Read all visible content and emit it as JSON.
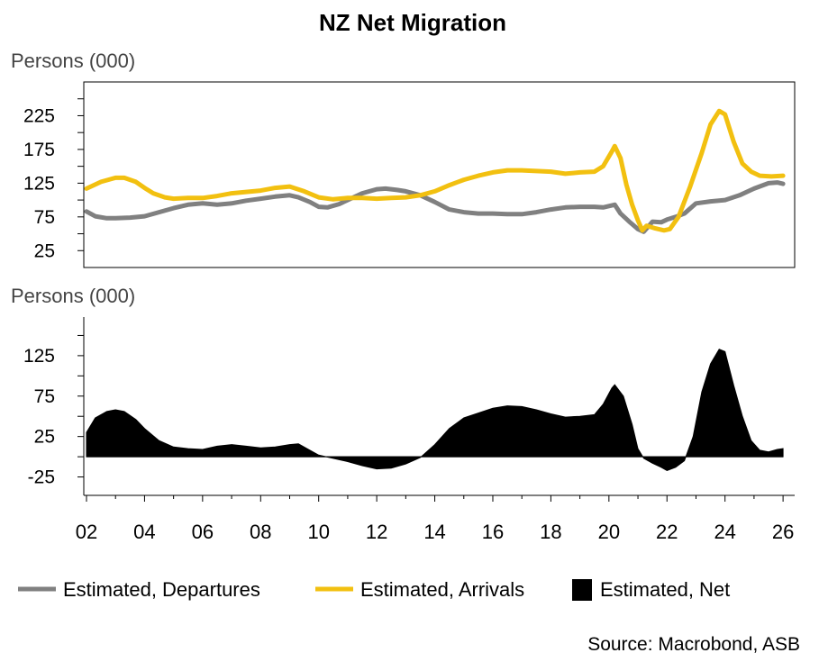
{
  "title": "NZ Net Migration",
  "source": "Source: Macrobond, ASB",
  "colors": {
    "departures": "#808080",
    "arrivals": "#f2c010",
    "net": "#000000"
  },
  "chart_data": [
    {
      "type": "line",
      "ylabel": "Persons (000)",
      "ylim": [
        0,
        275
      ],
      "yticks": [
        25,
        75,
        125,
        175,
        225
      ],
      "ytick_labels": [
        "25",
        "75",
        "125",
        "175",
        "225"
      ],
      "xlim": [
        2002,
        2026.4
      ],
      "grid": false,
      "series": [
        {
          "name": "Estimated, Departures",
          "color": "#808080",
          "points": [
            [
              2002.0,
              83
            ],
            [
              2002.3,
              76
            ],
            [
              2002.7,
              73
            ],
            [
              2003.0,
              73
            ],
            [
              2003.5,
              74
            ],
            [
              2004.0,
              76
            ],
            [
              2004.5,
              82
            ],
            [
              2005.0,
              88
            ],
            [
              2005.5,
              93
            ],
            [
              2006.0,
              95
            ],
            [
              2006.5,
              93
            ],
            [
              2007.0,
              95
            ],
            [
              2007.5,
              99
            ],
            [
              2008.0,
              102
            ],
            [
              2008.5,
              105
            ],
            [
              2009.0,
              107
            ],
            [
              2009.3,
              104
            ],
            [
              2009.7,
              97
            ],
            [
              2010.0,
              90
            ],
            [
              2010.3,
              89
            ],
            [
              2010.7,
              94
            ],
            [
              2011.0,
              100
            ],
            [
              2011.5,
              110
            ],
            [
              2012.0,
              116
            ],
            [
              2012.3,
              117
            ],
            [
              2012.7,
              115
            ],
            [
              2013.0,
              113
            ],
            [
              2013.5,
              107
            ],
            [
              2014.0,
              97
            ],
            [
              2014.5,
              86
            ],
            [
              2015.0,
              82
            ],
            [
              2015.5,
              80
            ],
            [
              2016.0,
              80
            ],
            [
              2016.5,
              79
            ],
            [
              2017.0,
              79
            ],
            [
              2017.5,
              82
            ],
            [
              2018.0,
              86
            ],
            [
              2018.5,
              89
            ],
            [
              2019.0,
              90
            ],
            [
              2019.5,
              90
            ],
            [
              2019.8,
              89
            ],
            [
              2020.2,
              93
            ],
            [
              2020.4,
              80
            ],
            [
              2020.7,
              68
            ],
            [
              2021.0,
              57
            ],
            [
              2021.2,
              53
            ],
            [
              2021.5,
              68
            ],
            [
              2021.8,
              67
            ],
            [
              2022.0,
              71
            ],
            [
              2022.3,
              75
            ],
            [
              2022.6,
              80
            ],
            [
              2023.0,
              95
            ],
            [
              2023.5,
              98
            ],
            [
              2024.0,
              100
            ],
            [
              2024.5,
              107
            ],
            [
              2025.0,
              117
            ],
            [
              2025.5,
              125
            ],
            [
              2025.8,
              126
            ],
            [
              2026.0,
              124
            ]
          ]
        },
        {
          "name": "Estimated, Arrivals",
          "color": "#f2c010",
          "points": [
            [
              2002.0,
              117
            ],
            [
              2002.5,
              127
            ],
            [
              2003.0,
              133
            ],
            [
              2003.3,
              133
            ],
            [
              2003.7,
              127
            ],
            [
              2004.0,
              118
            ],
            [
              2004.3,
              110
            ],
            [
              2004.7,
              104
            ],
            [
              2005.0,
              102
            ],
            [
              2005.5,
              103
            ],
            [
              2006.0,
              103
            ],
            [
              2006.5,
              106
            ],
            [
              2007.0,
              110
            ],
            [
              2007.5,
              112
            ],
            [
              2008.0,
              114
            ],
            [
              2008.5,
              118
            ],
            [
              2009.0,
              120
            ],
            [
              2009.5,
              113
            ],
            [
              2010.0,
              104
            ],
            [
              2010.5,
              101
            ],
            [
              2011.0,
              103
            ],
            [
              2011.5,
              103
            ],
            [
              2012.0,
              102
            ],
            [
              2012.5,
              103
            ],
            [
              2013.0,
              104
            ],
            [
              2013.5,
              107
            ],
            [
              2014.0,
              113
            ],
            [
              2014.5,
              122
            ],
            [
              2015.0,
              130
            ],
            [
              2015.5,
              136
            ],
            [
              2016.0,
              141
            ],
            [
              2016.5,
              144
            ],
            [
              2017.0,
              144
            ],
            [
              2017.5,
              143
            ],
            [
              2018.0,
              142
            ],
            [
              2018.5,
              139
            ],
            [
              2019.0,
              141
            ],
            [
              2019.5,
              142
            ],
            [
              2019.8,
              150
            ],
            [
              2020.1,
              172
            ],
            [
              2020.2,
              180
            ],
            [
              2020.4,
              162
            ],
            [
              2020.6,
              123
            ],
            [
              2020.8,
              93
            ],
            [
              2021.0,
              70
            ],
            [
              2021.15,
              55
            ],
            [
              2021.3,
              62
            ],
            [
              2021.6,
              58
            ],
            [
              2021.9,
              55
            ],
            [
              2022.1,
              57
            ],
            [
              2022.4,
              75
            ],
            [
              2022.8,
              120
            ],
            [
              2023.2,
              170
            ],
            [
              2023.5,
              212
            ],
            [
              2023.8,
              232
            ],
            [
              2024.0,
              227
            ],
            [
              2024.3,
              186
            ],
            [
              2024.6,
              154
            ],
            [
              2024.9,
              142
            ],
            [
              2025.2,
              136
            ],
            [
              2025.6,
              135
            ],
            [
              2026.0,
              136
            ]
          ]
        }
      ]
    },
    {
      "type": "area",
      "ylabel": "Persons (000)",
      "ylim": [
        -50,
        175
      ],
      "yticks": [
        -25,
        25,
        75,
        125
      ],
      "ytick_labels": [
        "-25",
        "25",
        "75",
        "125"
      ],
      "xlim": [
        2002,
        2026.4
      ],
      "xticks": [
        2002,
        2004,
        2006,
        2008,
        2010,
        2012,
        2014,
        2016,
        2018,
        2020,
        2022,
        2024,
        2026
      ],
      "xtick_labels": [
        "02",
        "04",
        "06",
        "08",
        "10",
        "12",
        "14",
        "16",
        "18",
        "20",
        "22",
        "24",
        "26"
      ],
      "grid": false,
      "series": [
        {
          "name": "Estimated, Net",
          "color": "#000000",
          "points": [
            [
              2002.0,
              30
            ],
            [
              2002.3,
              48
            ],
            [
              2002.7,
              56
            ],
            [
              2003.0,
              58
            ],
            [
              2003.3,
              56
            ],
            [
              2003.7,
              46
            ],
            [
              2004.0,
              35
            ],
            [
              2004.5,
              20
            ],
            [
              2005.0,
              12
            ],
            [
              2005.5,
              10
            ],
            [
              2006.0,
              9
            ],
            [
              2006.5,
              13
            ],
            [
              2007.0,
              15
            ],
            [
              2007.5,
              13
            ],
            [
              2008.0,
              11
            ],
            [
              2008.5,
              12
            ],
            [
              2009.0,
              15
            ],
            [
              2009.3,
              16
            ],
            [
              2009.7,
              8
            ],
            [
              2010.0,
              2
            ],
            [
              2010.5,
              -2
            ],
            [
              2011.0,
              -6
            ],
            [
              2011.5,
              -11
            ],
            [
              2012.0,
              -15
            ],
            [
              2012.5,
              -14
            ],
            [
              2013.0,
              -9
            ],
            [
              2013.5,
              -1
            ],
            [
              2014.0,
              15
            ],
            [
              2014.5,
              35
            ],
            [
              2015.0,
              48
            ],
            [
              2015.5,
              54
            ],
            [
              2016.0,
              60
            ],
            [
              2016.5,
              63
            ],
            [
              2017.0,
              62
            ],
            [
              2017.5,
              58
            ],
            [
              2018.0,
              53
            ],
            [
              2018.5,
              49
            ],
            [
              2019.0,
              50
            ],
            [
              2019.5,
              52
            ],
            [
              2019.8,
              65
            ],
            [
              2020.1,
              85
            ],
            [
              2020.2,
              89
            ],
            [
              2020.5,
              75
            ],
            [
              2020.8,
              40
            ],
            [
              2021.0,
              10
            ],
            [
              2021.2,
              -2
            ],
            [
              2021.5,
              -8
            ],
            [
              2021.8,
              -13
            ],
            [
              2022.0,
              -17
            ],
            [
              2022.3,
              -13
            ],
            [
              2022.6,
              -5
            ],
            [
              2022.9,
              25
            ],
            [
              2023.2,
              80
            ],
            [
              2023.5,
              115
            ],
            [
              2023.8,
              133
            ],
            [
              2024.0,
              130
            ],
            [
              2024.3,
              88
            ],
            [
              2024.6,
              50
            ],
            [
              2024.9,
              20
            ],
            [
              2025.2,
              8
            ],
            [
              2025.5,
              6
            ],
            [
              2025.8,
              9
            ],
            [
              2026.0,
              10
            ]
          ]
        }
      ]
    }
  ],
  "legend": {
    "placement": "bottom",
    "items": [
      {
        "label": "Estimated, Departures",
        "color": "#808080",
        "marker": "line"
      },
      {
        "label": "Estimated, Arrivals",
        "color": "#f2c010",
        "marker": "line"
      },
      {
        "label": "Estimated, Net",
        "color": "#000000",
        "marker": "box"
      }
    ]
  }
}
